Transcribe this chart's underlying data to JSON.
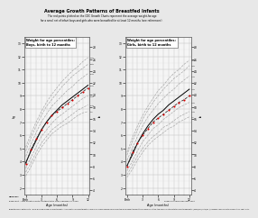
{
  "title": "Average Growth Patterns of Breastfed Infants",
  "subtitle1": "The red points plotted on the CDC Growth Charts represent the average weight-for-age",
  "subtitle2": "for a small set of infant boys and girls who were breastfed for at least 12 months (see references).",
  "sources_label": "Sources:",
  "source1": "Base chart – CDC Growth Charts, United States. Published May 30, 2000.",
  "source2": "Breastfed baby data points – WHO Working Group on Infant Growth. An evaluation of infant growth: a summary of analyses performed for the WHO Expert Committee on Physical Status: the use and interpretation of anthropometry. (WHO/FCH/CAH/97.4). Geneva: World Health Organization, 1994, p.41.",
  "credit": "Graphs by kellymom.com, 2004",
  "boys_title": "Weight for age percentiles:\nBoys, birth to 12 months",
  "girls_title": "Weight for age percentiles:\nGirls, birth to 12 months",
  "x_ages": [
    0,
    1,
    2,
    3,
    4,
    5,
    6,
    7,
    8,
    9,
    10,
    11,
    12
  ],
  "x_label": "Age (months)",
  "boys_percentiles": {
    "5th": [
      2.9,
      3.6,
      4.4,
      5.1,
      5.6,
      6.1,
      6.4,
      6.7,
      6.9,
      7.2,
      7.5,
      7.7,
      7.8
    ],
    "10th": [
      3.2,
      3.9,
      4.7,
      5.4,
      5.9,
      6.4,
      6.7,
      7.0,
      7.3,
      7.6,
      7.9,
      8.1,
      8.3
    ],
    "25th": [
      3.5,
      4.3,
      5.1,
      5.9,
      6.4,
      6.9,
      7.3,
      7.6,
      7.9,
      8.2,
      8.5,
      8.8,
      9.0
    ],
    "50th": [
      3.9,
      4.8,
      5.6,
      6.4,
      7.0,
      7.5,
      7.9,
      8.3,
      8.6,
      8.9,
      9.2,
      9.5,
      9.8
    ],
    "75th": [
      4.4,
      5.3,
      6.2,
      7.0,
      7.6,
      8.2,
      8.6,
      9.0,
      9.4,
      9.7,
      10.1,
      10.4,
      10.7
    ],
    "90th": [
      4.8,
      5.8,
      6.7,
      7.5,
      8.2,
      8.7,
      9.2,
      9.7,
      10.1,
      10.5,
      10.8,
      11.1,
      11.4
    ],
    "95th": [
      5.1,
      6.1,
      7.0,
      7.8,
      8.5,
      9.1,
      9.6,
      10.1,
      10.5,
      10.9,
      11.2,
      11.6,
      11.9
    ]
  },
  "boys_red_dots": [
    3.8,
    4.9,
    5.7,
    6.4,
    7.0,
    7.5,
    7.8,
    8.1,
    8.4,
    8.7,
    9.0,
    9.3,
    9.6
  ],
  "girls_percentiles": {
    "5th": [
      2.8,
      3.4,
      4.1,
      4.7,
      5.2,
      5.6,
      5.9,
      6.2,
      6.5,
      6.7,
      7.0,
      7.2,
      7.4
    ],
    "10th": [
      3.0,
      3.7,
      4.4,
      5.0,
      5.5,
      5.9,
      6.2,
      6.6,
      6.8,
      7.1,
      7.4,
      7.6,
      7.8
    ],
    "25th": [
      3.3,
      4.0,
      4.8,
      5.5,
      6.0,
      6.5,
      6.8,
      7.2,
      7.5,
      7.8,
      8.1,
      8.3,
      8.5
    ],
    "50th": [
      3.7,
      4.5,
      5.4,
      6.1,
      6.7,
      7.2,
      7.6,
      7.9,
      8.3,
      8.6,
      8.9,
      9.2,
      9.5
    ],
    "75th": [
      4.1,
      5.0,
      5.9,
      6.7,
      7.4,
      7.9,
      8.4,
      8.8,
      9.2,
      9.5,
      9.9,
      10.2,
      10.5
    ],
    "90th": [
      4.5,
      5.5,
      6.4,
      7.2,
      7.9,
      8.5,
      9.0,
      9.5,
      9.9,
      10.3,
      10.6,
      10.9,
      11.3
    ],
    "95th": [
      4.7,
      5.8,
      6.7,
      7.5,
      8.2,
      8.8,
      9.4,
      9.8,
      10.3,
      10.7,
      11.0,
      11.4,
      11.7
    ]
  },
  "girls_red_dots": [
    3.6,
    4.7,
    5.4,
    6.0,
    6.5,
    7.0,
    7.3,
    7.6,
    7.9,
    8.2,
    8.5,
    8.7,
    9.0
  ],
  "ylim_kg": [
    1.5,
    13.5
  ],
  "yticks_kg": [
    2,
    3,
    4,
    5,
    6,
    7,
    8,
    9,
    10,
    11,
    12,
    13
  ],
  "yticks_lb": [
    4,
    6,
    8,
    10,
    12,
    14,
    16,
    18,
    20,
    22,
    24,
    26,
    28
  ],
  "percentile_labels_right": [
    "95th",
    "90th",
    "75th",
    "50th",
    "25th",
    "10th",
    "5th"
  ],
  "grid_color": "#bbbbbb",
  "line_color": "#aaaaaa",
  "dot_color": "#dd0000",
  "median_color": "#000000",
  "box_bg": "#ffffff",
  "background_color": "#e8e8e8",
  "chart_bg": "#f5f5f5"
}
